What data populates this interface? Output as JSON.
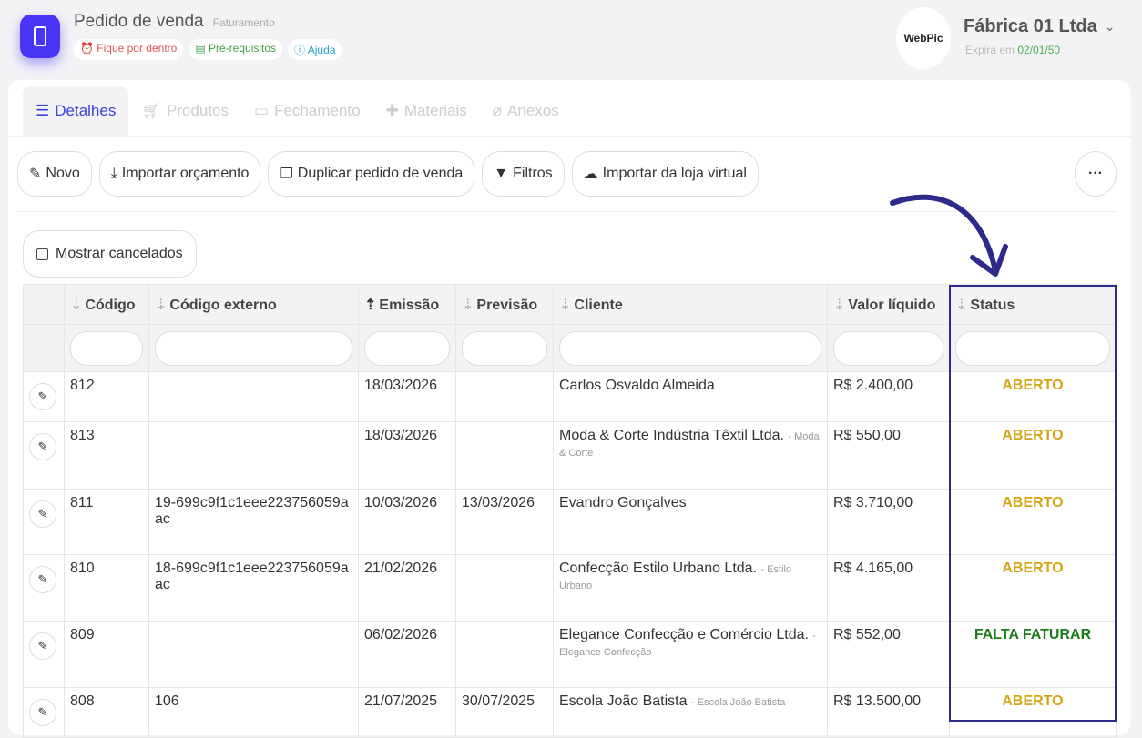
{
  "header": {
    "title": "Pedido de venda",
    "subtitle": "Faturamento",
    "chips": [
      {
        "label": "Fique por dentro",
        "color": "#e05555",
        "icon": "bell-icon"
      },
      {
        "label": "Pré-requisitos",
        "color": "#43a047",
        "icon": "list-icon"
      },
      {
        "label": "Ajuda",
        "color": "#2aa3c8",
        "icon": "help-icon"
      }
    ],
    "logo": "WebPic",
    "company": "Fábrica 01 Ltda",
    "expira_label": "Expira em",
    "expira_date": "02/01/50"
  },
  "tabs": [
    {
      "label": "Detalhes",
      "icon": "list-icon"
    },
    {
      "label": "Produtos",
      "icon": "cart-icon"
    },
    {
      "label": "Fechamento",
      "icon": "card-icon"
    },
    {
      "label": "Materiais",
      "icon": "puzzle-icon"
    },
    {
      "label": "Anexos",
      "icon": "paperclip-icon"
    }
  ],
  "toolbar": {
    "novo": "Novo",
    "importar": "Importar orçamento",
    "duplicar": "Duplicar pedido de venda",
    "filtros": "Filtros",
    "loja": "Importar da loja virtual",
    "more": "···"
  },
  "mostrar_cancelados": "Mostrar cancelados",
  "columns": [
    "Código",
    "Código externo",
    "Emissão",
    "Previsão",
    "Cliente",
    "Valor líquido",
    "Status"
  ],
  "rows": [
    {
      "codigo": "812",
      "externo": "",
      "emissao": "18/03/2026",
      "previsao": "",
      "cliente": "Carlos Osvaldo Almeida",
      "alias": "",
      "valor": "R$ 2.400,00",
      "status": "ABERTO"
    },
    {
      "codigo": "813",
      "externo": "",
      "emissao": "18/03/2026",
      "previsao": "",
      "cliente": "Moda & Corte Indústria Têxtil Ltda.",
      "alias": "- Moda & Corte",
      "valor": "R$ 550,00",
      "status": "ABERTO"
    },
    {
      "codigo": "811",
      "externo": "19-699c9f1c1eee223756059aac",
      "emissao": "10/03/2026",
      "previsao": "13/03/2026",
      "cliente": "Evandro Gonçalves",
      "alias": "",
      "valor": "R$ 3.710,00",
      "status": "ABERTO"
    },
    {
      "codigo": "810",
      "externo": "18-699c9f1c1eee223756059aac",
      "emissao": "21/02/2026",
      "previsao": "",
      "cliente": "Confecção Estilo Urbano Ltda.",
      "alias": "- Estilo Urbano",
      "valor": "R$ 4.165,00",
      "status": "ABERTO"
    },
    {
      "codigo": "809",
      "externo": "",
      "emissao": "06/02/2026",
      "previsao": "",
      "cliente": "Elegance Confecção e Comércio Ltda.",
      "alias": "- Elegance Confecção",
      "valor": "R$ 552,00",
      "status": "FALTA FATURAR"
    },
    {
      "codigo": "808",
      "externo": "106",
      "emissao": "21/07/2025",
      "previsao": "30/07/2025",
      "cliente": "Escola João Batista",
      "alias": "- Escola João Batista",
      "valor": "R$ 13.500,00",
      "status": "ABERTO"
    }
  ]
}
